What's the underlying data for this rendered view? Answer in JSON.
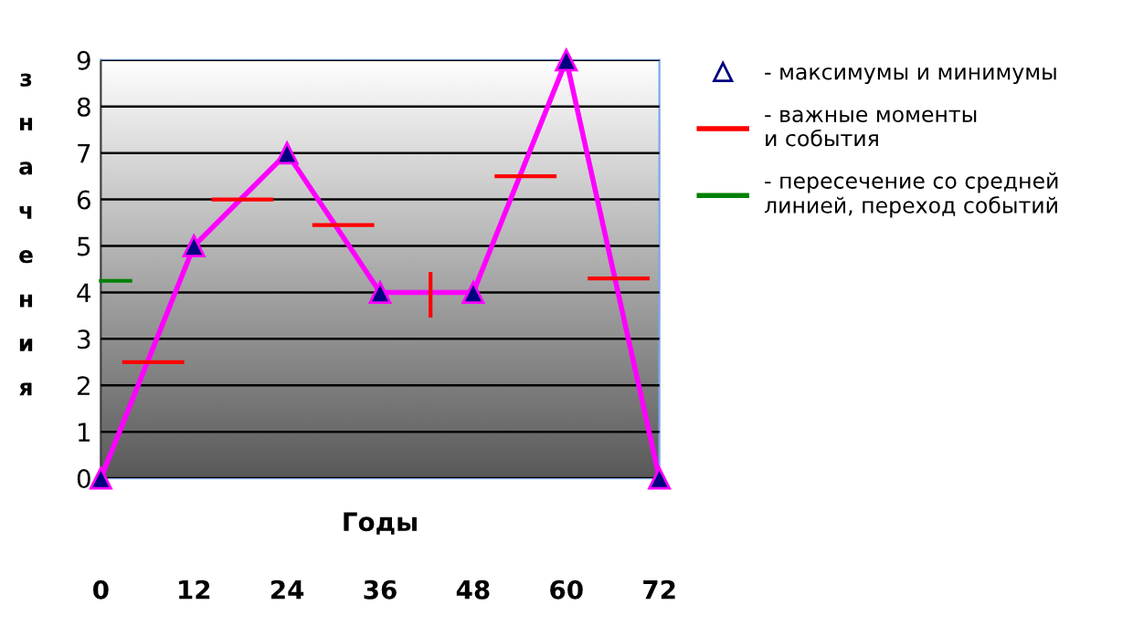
{
  "chart_data": {
    "type": "line",
    "x": [
      0,
      12,
      24,
      36,
      48,
      60,
      72
    ],
    "xlim": [
      0,
      72
    ],
    "xticks": [
      0,
      12,
      24,
      36,
      48,
      60,
      72
    ],
    "ylim": [
      0,
      9
    ],
    "yticks": [
      0,
      1,
      2,
      3,
      4,
      5,
      6,
      7,
      8,
      9
    ],
    "xlabel": "Годы",
    "ylabel": "значения",
    "grid": "y",
    "legend": "right",
    "series": [
      {
        "name": "- максимумы и минимумы",
        "color": "#ff00ff",
        "marker": "triangle",
        "values": [
          0,
          5,
          7,
          4,
          4,
          9,
          0
        ]
      },
      {
        "name": "- важные моменты\nи события",
        "color": "#ff0000",
        "marker": "none",
        "x": [
          3,
          10.5,
          null,
          14.5,
          22,
          null,
          27.5,
          35,
          null,
          42.5,
          42.5,
          null,
          51,
          58.5,
          null,
          63,
          70.5
        ],
        "values": [
          2.5,
          2.5,
          null,
          6,
          6,
          null,
          5.45,
          5.45,
          null,
          3.5,
          4.4,
          null,
          6.5,
          6.5,
          null,
          4.3,
          4.3
        ]
      },
      {
        "name": "- пересечение со средней\nлинией, переход событий",
        "color": "#008000",
        "marker": "none",
        "x": [
          0,
          3.8
        ],
        "values": [
          4.25,
          4.25
        ]
      }
    ]
  }
}
